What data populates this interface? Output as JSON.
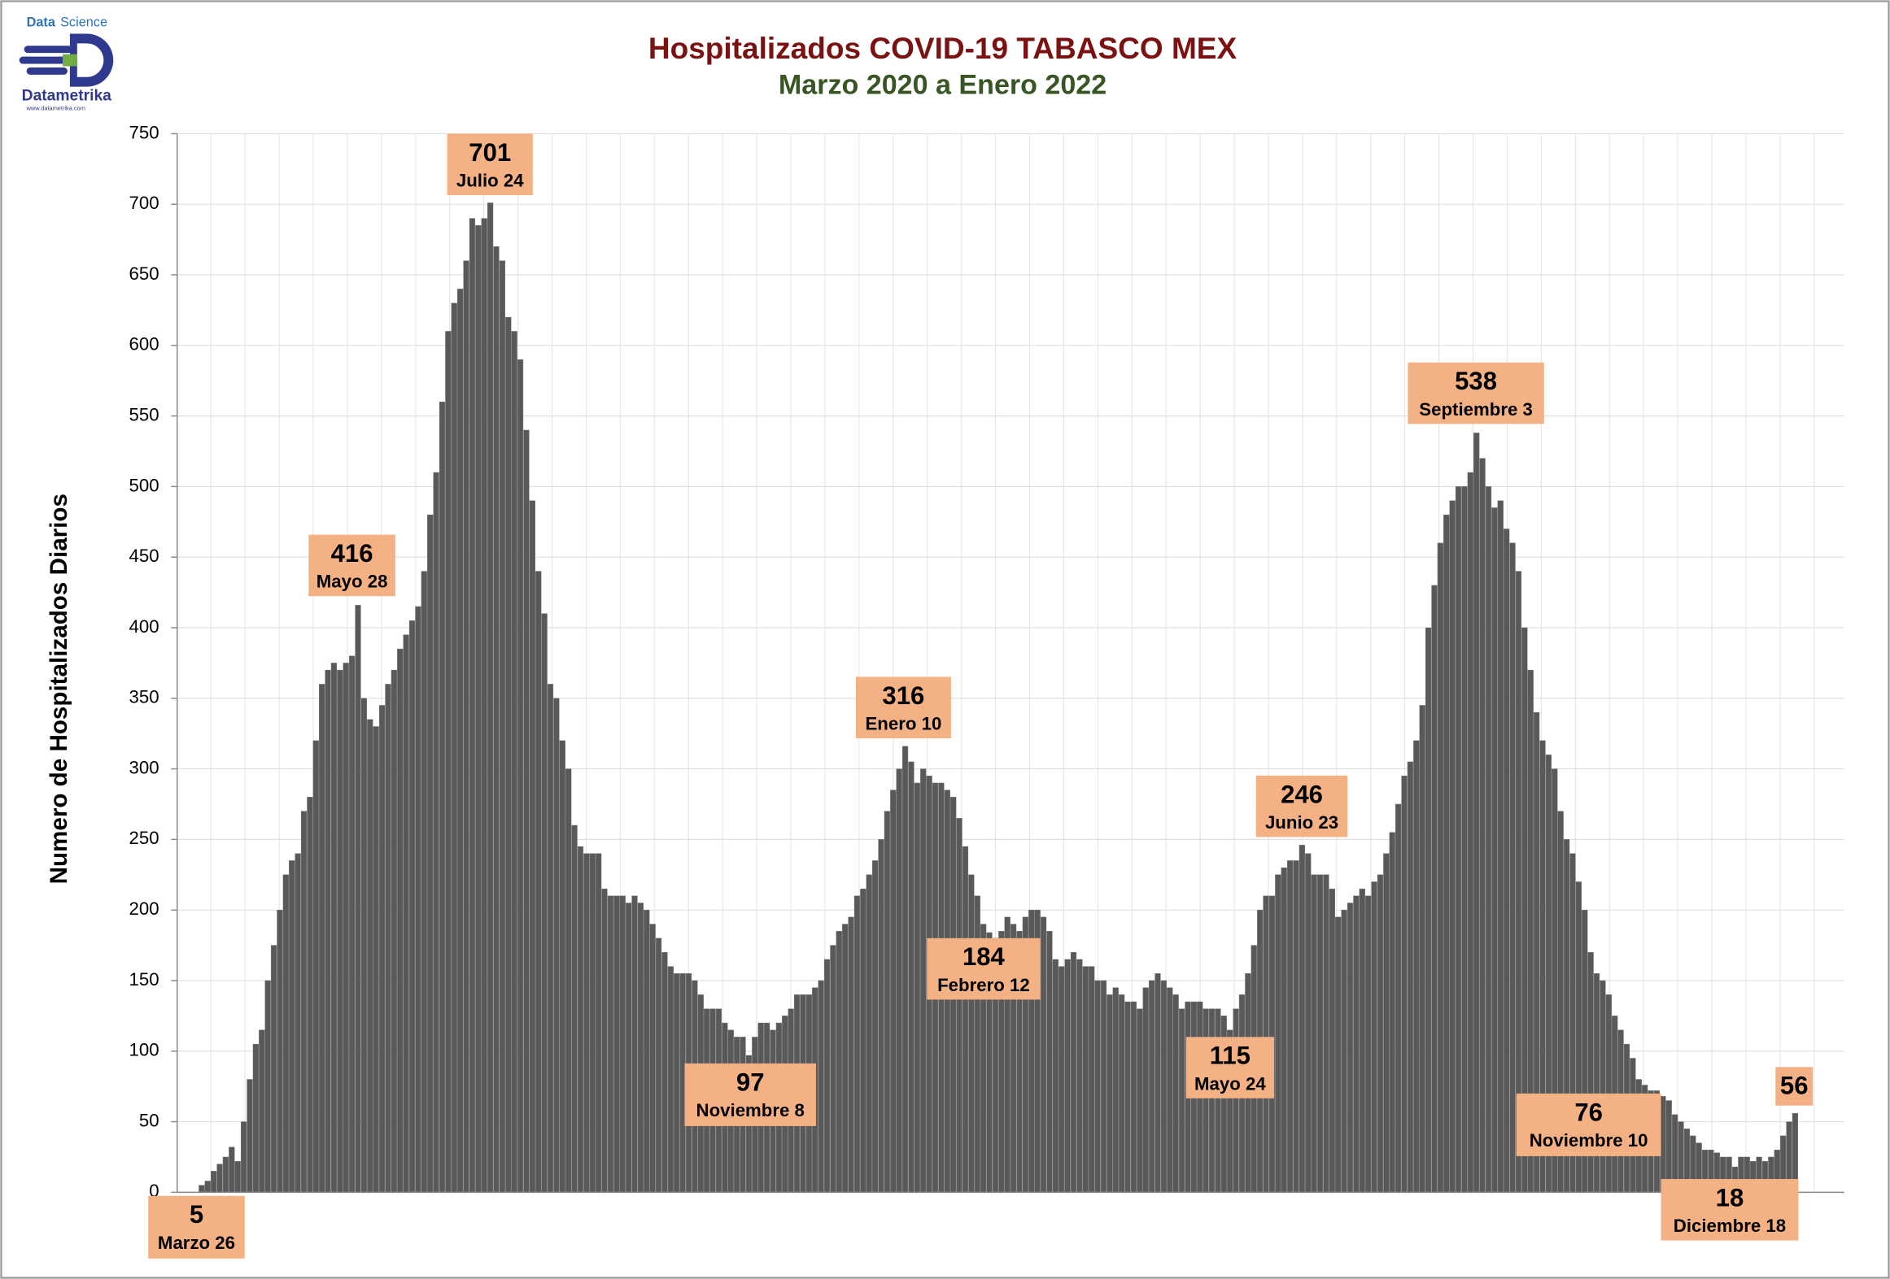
{
  "chart_data": {
    "type": "bar",
    "title": "Hospitalizados COVID-19 TABASCO MEX",
    "subtitle": "Marzo 2020 a Enero 2022",
    "y_label": "Numero de Hospitalizados Diarios",
    "color": "#595959",
    "ylim": [
      0,
      750
    ],
    "yticks": [
      0,
      50,
      100,
      150,
      200,
      250,
      300,
      350,
      400,
      450,
      500,
      550,
      600,
      650,
      700,
      750
    ],
    "grid": true,
    "values": [
      5,
      8,
      15,
      20,
      25,
      32,
      22,
      50,
      80,
      105,
      115,
      150,
      175,
      200,
      225,
      235,
      240,
      270,
      280,
      320,
      360,
      370,
      375,
      370,
      375,
      380,
      416,
      350,
      335,
      330,
      345,
      360,
      370,
      385,
      395,
      405,
      415,
      440,
      480,
      510,
      560,
      610,
      630,
      640,
      660,
      690,
      685,
      690,
      701,
      670,
      660,
      620,
      610,
      590,
      540,
      490,
      440,
      410,
      360,
      350,
      320,
      300,
      260,
      245,
      240,
      240,
      240,
      215,
      210,
      210,
      210,
      205,
      210,
      205,
      200,
      190,
      180,
      170,
      160,
      155,
      155,
      155,
      150,
      140,
      130,
      130,
      130,
      120,
      115,
      110,
      110,
      97,
      110,
      120,
      120,
      115,
      120,
      125,
      130,
      140,
      140,
      140,
      145,
      150,
      165,
      175,
      185,
      190,
      195,
      210,
      215,
      225,
      235,
      250,
      270,
      285,
      300,
      316,
      305,
      290,
      300,
      295,
      290,
      290,
      285,
      280,
      265,
      245,
      225,
      210,
      190,
      184,
      180,
      185,
      195,
      190,
      185,
      195,
      200,
      200,
      195,
      185,
      165,
      160,
      165,
      170,
      165,
      160,
      160,
      150,
      150,
      140,
      145,
      140,
      135,
      135,
      130,
      145,
      150,
      155,
      150,
      145,
      140,
      130,
      135,
      135,
      135,
      130,
      130,
      130,
      125,
      115,
      130,
      140,
      155,
      175,
      200,
      210,
      210,
      225,
      230,
      235,
      235,
      246,
      240,
      225,
      225,
      225,
      215,
      195,
      200,
      205,
      210,
      215,
      210,
      220,
      225,
      240,
      255,
      275,
      295,
      305,
      320,
      345,
      400,
      430,
      460,
      480,
      490,
      500,
      500,
      510,
      538,
      520,
      500,
      485,
      490,
      470,
      460,
      440,
      400,
      370,
      340,
      320,
      310,
      300,
      270,
      250,
      240,
      220,
      200,
      170,
      155,
      150,
      140,
      125,
      115,
      105,
      95,
      80,
      76,
      72,
      72,
      68,
      65,
      55,
      50,
      45,
      40,
      35,
      30,
      30,
      28,
      25,
      25,
      18,
      25,
      25,
      22,
      25,
      22,
      25,
      30,
      40,
      50,
      56
    ],
    "annotations": [
      {
        "value": 5,
        "label": "Marzo 26"
      },
      {
        "value": 416,
        "label": "Mayo 28"
      },
      {
        "value": 701,
        "label": "Julio 24"
      },
      {
        "value": 97,
        "label": "Noviembre 8"
      },
      {
        "value": 316,
        "label": "Enero 10"
      },
      {
        "value": 184,
        "label": "Febrero 12"
      },
      {
        "value": 115,
        "label": "Mayo 24"
      },
      {
        "value": 246,
        "label": "Junio 23"
      },
      {
        "value": 538,
        "label": "Septiembre 3"
      },
      {
        "value": 76,
        "label": "Noviembre 10"
      },
      {
        "value": 18,
        "label": "Diciembre 18"
      },
      {
        "value": 56
      }
    ]
  },
  "logo": {
    "top": "Data",
    "top_accent": "Science",
    "name": "Datametrika",
    "url": "www.datametrika.com"
  }
}
